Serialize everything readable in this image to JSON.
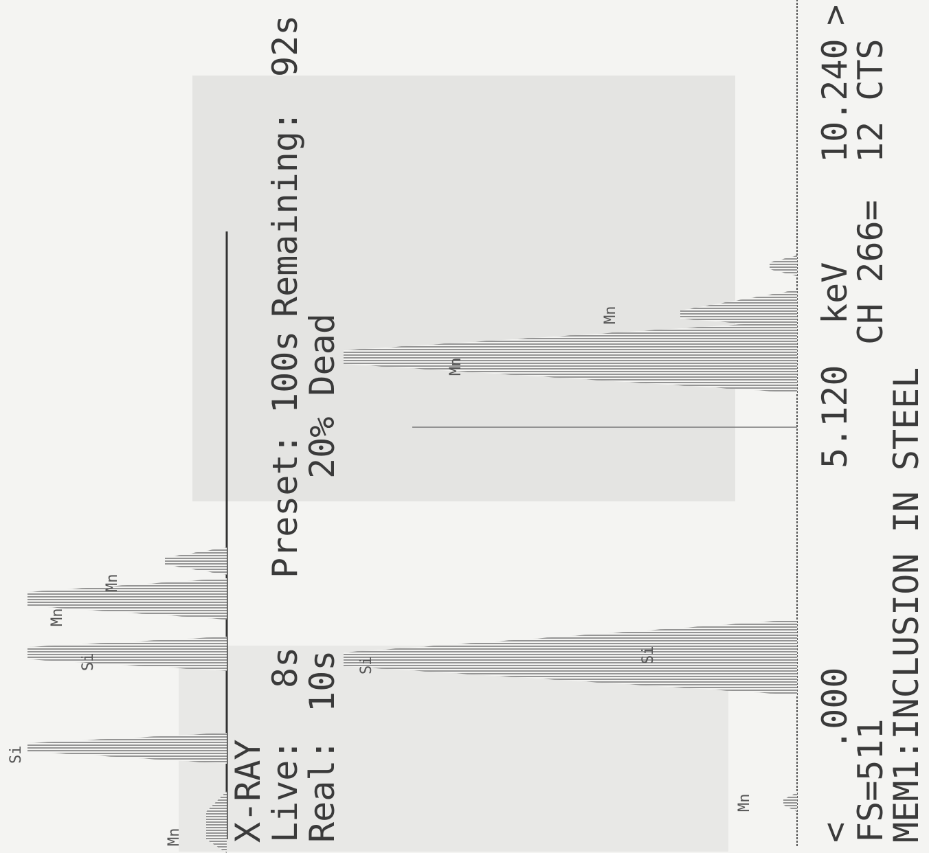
{
  "header": {
    "title": "X-RAY",
    "live_label": "Live:",
    "live": "8s",
    "preset_label": "Preset:",
    "preset": "100s",
    "remaining_label": "Remaining:",
    "remaining": "92s",
    "real_label": "Real:",
    "real": "10s",
    "dead": "20% Dead"
  },
  "axis": {
    "left_arrow": "<",
    "start": ".000",
    "mid": "5.120",
    "unit": "keV",
    "end": "10.240",
    "right_arrow": ">"
  },
  "status": {
    "full_scale": "FS=511",
    "channel": "CH 266=",
    "counts": "12 CTS"
  },
  "memo": "MEM1:INCLUSION IN STEEL",
  "peak_labels": {
    "upper": [
      "Mn",
      "Si",
      "Si",
      "Mn",
      "Mn"
    ],
    "lower": [
      "Mn",
      "Si",
      "Si",
      "Mn",
      "Mn"
    ]
  }
}
